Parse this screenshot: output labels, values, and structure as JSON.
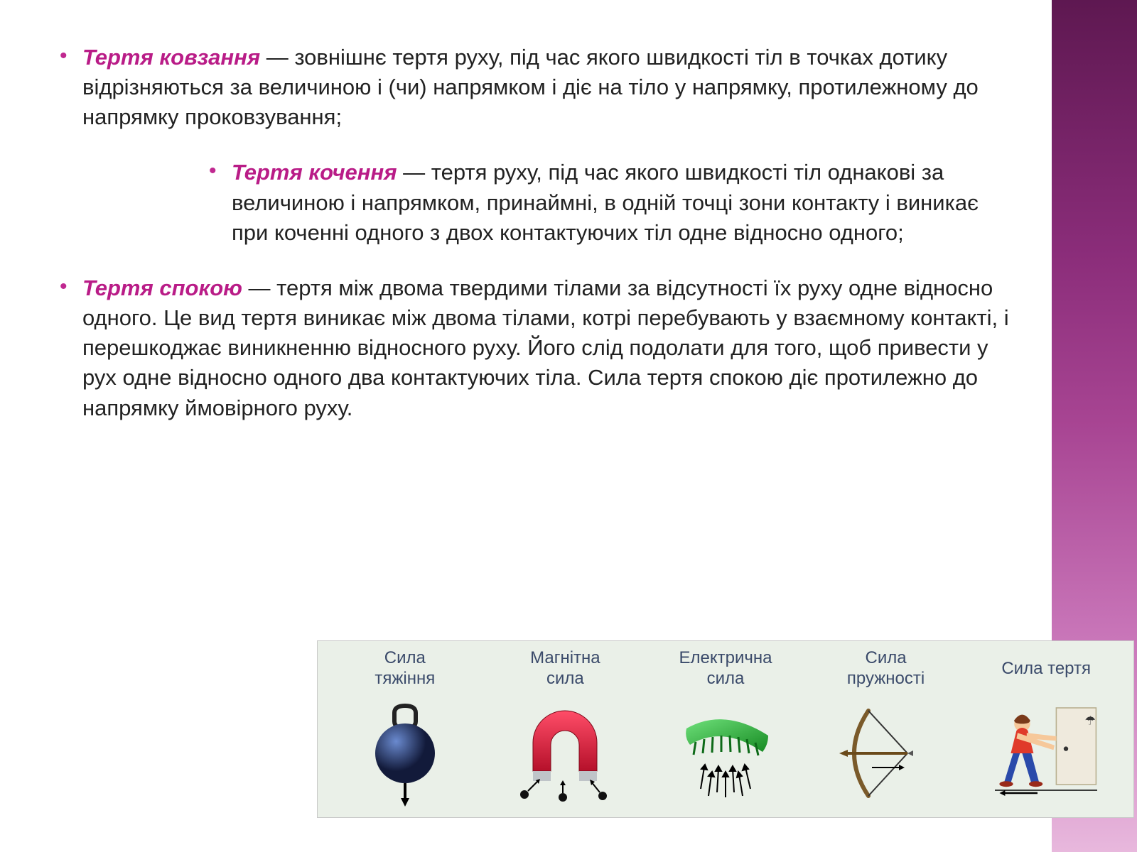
{
  "colors": {
    "term": "#b91c87",
    "bullet": "#c02890",
    "text": "#222222",
    "sideTop": "#5e1851",
    "sideBottom": "#e8b8dd",
    "stripBg": "#eaf0e8",
    "stripBorder": "#c8c8c8",
    "forceLabel": "#3a4a6a"
  },
  "text_fontsize": 31,
  "blocks": [
    {
      "term": "Тертя ковзання",
      "body": " — зовнішнє тертя руху, під час якого швидкості тіл в точках дотику відрізняються за величиною і (чи) напрямком і діє на тіло у напрямку, протилежному до напрямку проковзування;",
      "indent": false
    },
    {
      "term": "Тертя кочення",
      "body": " — тертя руху, під час якого швидкості тіл однакові за величиною і напрямком, принаймні, в одній точці зони контакту і виникає при коченні одного з двох контактуючих тіл одне відносно одного;",
      "indent": true
    },
    {
      "term": "Тертя спокою",
      "body": " — тертя між двома твердими тілами за відсутності їх руху одне відносно одного. Це вид тертя виникає між двома тілами, котрі перебувають у взаємному контакті, і перешкоджає виникненню відносного руху. Його слід подолати для того, щоб привести у рух одне відносно одного два контактуючих тіла. Сила тертя спокою діє протилежно до напрямку ймовірного руху.",
      "indent": false
    }
  ],
  "forces": [
    {
      "label": "Сила\nтяжіння",
      "icon": "gravity",
      "color": "#2a3b7a"
    },
    {
      "label": "Магнітна\nсила",
      "icon": "magnet",
      "color": "#d01c3a"
    },
    {
      "label": "Електрична\nсила",
      "icon": "electric",
      "color": "#2fae3a"
    },
    {
      "label": "Сила\nпружності",
      "icon": "bow",
      "color": "#7a5a2a"
    },
    {
      "label": "Сила тертя",
      "icon": "friction",
      "color": "#d03a2a"
    }
  ]
}
